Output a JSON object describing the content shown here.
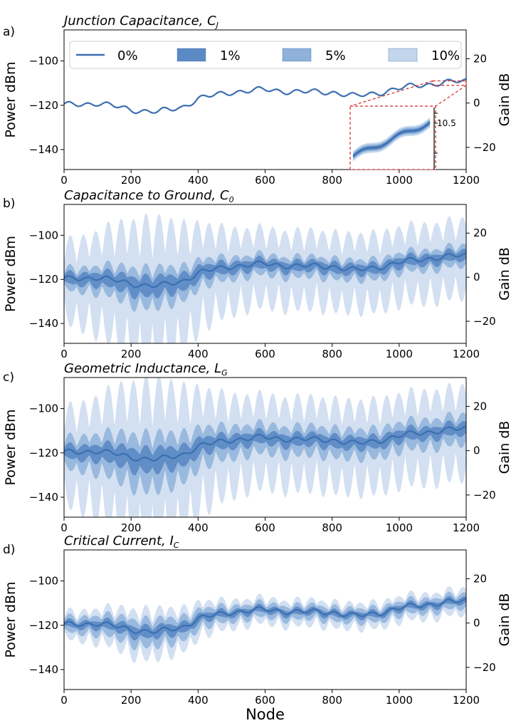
{
  "figure": {
    "x_axis_label": "Node",
    "colors": {
      "line": "#3b6fb0",
      "band_1": "#5b8ac4",
      "band_5": "#8fb1da",
      "band_10": "#c4d6ec",
      "inset": "#d62728"
    }
  },
  "legend": {
    "entries": [
      {
        "label": "0%",
        "style": "line"
      },
      {
        "label": "1%",
        "style": "band_1"
      },
      {
        "label": "5%",
        "style": "band_5"
      },
      {
        "label": "10%",
        "style": "band_10"
      }
    ]
  },
  "chart_data": [
    {
      "type": "area",
      "letter": "a)",
      "title": "Junction Capacitance, C",
      "title_sub": "J",
      "xlabel": "",
      "ylabel": "Power dBm",
      "ylabel_right": "Gain dB",
      "xlim": [
        0,
        1200
      ],
      "ylim": [
        -149,
        -86
      ],
      "ylim_right": [
        -30,
        33
      ],
      "xticks": [
        0,
        200,
        400,
        600,
        800,
        1000,
        1200
      ],
      "yticks": [
        -140,
        -120,
        -100
      ],
      "yticks_right": [
        -20,
        0,
        20
      ],
      "baseline_points": [
        [
          0,
          -120
        ],
        [
          100,
          -119
        ],
        [
          200,
          -122
        ],
        [
          280,
          -123
        ],
        [
          350,
          -121
        ],
        [
          400,
          -117
        ],
        [
          500,
          -114
        ],
        [
          600,
          -113
        ],
        [
          700,
          -114
        ],
        [
          800,
          -114
        ],
        [
          870,
          -116
        ],
        [
          950,
          -114
        ],
        [
          1050,
          -111
        ],
        [
          1200,
          -109
        ]
      ],
      "band_spread": {
        "1%": 0.0,
        "5%": 0.0,
        "10%": 0.0
      },
      "inset": {
        "x_range": [
          1100,
          1200
        ],
        "y_range": [
          -111,
          -109
        ],
        "label": "10.5"
      }
    },
    {
      "type": "area",
      "letter": "b)",
      "title": "Capacitance to Ground, C",
      "title_sub": "0",
      "xlabel": "",
      "ylabel": "Power dBm",
      "ylabel_right": "Gain dB",
      "xlim": [
        0,
        1200
      ],
      "ylim": [
        -149,
        -86
      ],
      "ylim_right": [
        -30,
        33
      ],
      "xticks": [
        0,
        200,
        400,
        600,
        800,
        1000,
        1200
      ],
      "yticks": [
        -140,
        -120,
        -100
      ],
      "yticks_right": [
        -20,
        0,
        20
      ],
      "baseline_points": [
        [
          0,
          -120
        ],
        [
          100,
          -119
        ],
        [
          200,
          -122
        ],
        [
          280,
          -123
        ],
        [
          350,
          -121
        ],
        [
          400,
          -117
        ],
        [
          500,
          -114
        ],
        [
          600,
          -113
        ],
        [
          700,
          -114
        ],
        [
          800,
          -114
        ],
        [
          870,
          -116
        ],
        [
          950,
          -114
        ],
        [
          1050,
          -111
        ],
        [
          1200,
          -109
        ]
      ],
      "band_spread": {
        "1%": 2.5,
        "5%": 5.0,
        "10%": 17.0
      }
    },
    {
      "type": "area",
      "letter": "c)",
      "title": "Geometric Inductance, L",
      "title_sub": "G",
      "xlabel": "",
      "ylabel": "Power dBm",
      "ylabel_right": "Gain dB",
      "xlim": [
        0,
        1200
      ],
      "ylim": [
        -149,
        -86
      ],
      "ylim_right": [
        -30,
        33
      ],
      "xticks": [
        0,
        200,
        400,
        600,
        800,
        1000,
        1200
      ],
      "yticks": [
        -140,
        -120,
        -100
      ],
      "yticks_right": [
        -20,
        0,
        20
      ],
      "baseline_points": [
        [
          0,
          -120
        ],
        [
          100,
          -119
        ],
        [
          200,
          -122
        ],
        [
          280,
          -123
        ],
        [
          350,
          -121
        ],
        [
          400,
          -117
        ],
        [
          500,
          -114
        ],
        [
          600,
          -113
        ],
        [
          700,
          -114
        ],
        [
          800,
          -114
        ],
        [
          870,
          -116
        ],
        [
          950,
          -114
        ],
        [
          1050,
          -111
        ],
        [
          1200,
          -109
        ]
      ],
      "band_spread": {
        "1%": 3.0,
        "5%": 7.0,
        "10%": 20.0
      }
    },
    {
      "type": "area",
      "letter": "d)",
      "title": "Critical Current, I",
      "title_sub": "C",
      "xlabel": "Node",
      "ylabel": "Power dBm",
      "ylabel_right": "Gain dB",
      "xlim": [
        0,
        1200
      ],
      "ylim": [
        -149,
        -86
      ],
      "ylim_right": [
        -30,
        33
      ],
      "xticks": [
        0,
        200,
        400,
        600,
        800,
        1000,
        1200
      ],
      "yticks": [
        -140,
        -120,
        -100
      ],
      "yticks_right": [
        -20,
        0,
        20
      ],
      "baseline_points": [
        [
          0,
          -120
        ],
        [
          100,
          -119
        ],
        [
          200,
          -122
        ],
        [
          280,
          -123
        ],
        [
          350,
          -121
        ],
        [
          400,
          -117
        ],
        [
          500,
          -114
        ],
        [
          600,
          -113
        ],
        [
          700,
          -114
        ],
        [
          800,
          -114
        ],
        [
          870,
          -116
        ],
        [
          950,
          -114
        ],
        [
          1050,
          -111
        ],
        [
          1200,
          -109
        ]
      ],
      "band_spread": {
        "1%": 1.5,
        "5%": 3.5,
        "10%": 6.0
      }
    }
  ]
}
